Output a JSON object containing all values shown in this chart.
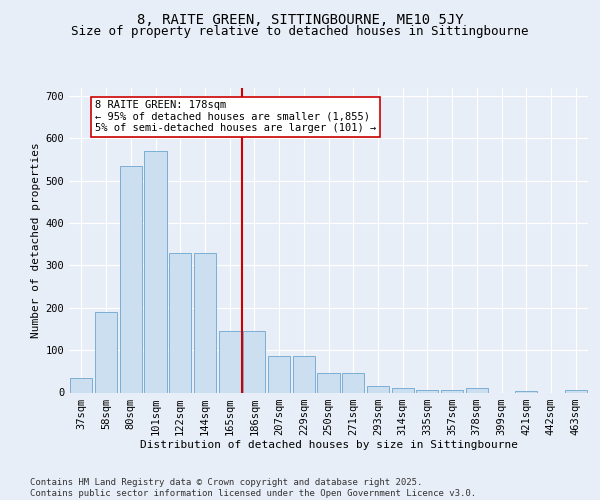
{
  "title": "8, RAITE GREEN, SITTINGBOURNE, ME10 5JY",
  "subtitle": "Size of property relative to detached houses in Sittingbourne",
  "xlabel": "Distribution of detached houses by size in Sittingbourne",
  "ylabel": "Number of detached properties",
  "categories": [
    "37sqm",
    "58sqm",
    "80sqm",
    "101sqm",
    "122sqm",
    "144sqm",
    "165sqm",
    "186sqm",
    "207sqm",
    "229sqm",
    "250sqm",
    "271sqm",
    "293sqm",
    "314sqm",
    "335sqm",
    "357sqm",
    "378sqm",
    "399sqm",
    "421sqm",
    "442sqm",
    "463sqm"
  ],
  "values": [
    35,
    190,
    535,
    570,
    330,
    330,
    145,
    145,
    85,
    85,
    45,
    45,
    15,
    10,
    5,
    5,
    10,
    0,
    4,
    0,
    5
  ],
  "bar_color": "#ccdff0",
  "bar_edge_color": "#7bafd4",
  "vline_x_index": 7,
  "vline_color": "#cc0000",
  "annotation_text": "8 RAITE GREEN: 178sqm\n← 95% of detached houses are smaller (1,855)\n5% of semi-detached houses are larger (101) →",
  "annotation_box_facecolor": "#ffffff",
  "annotation_box_edgecolor": "#cc0000",
  "ylim": [
    0,
    720
  ],
  "yticks": [
    0,
    100,
    200,
    300,
    400,
    500,
    600,
    700
  ],
  "bg_color": "#e8eef7",
  "grid_color": "#ffffff",
  "footer_line1": "Contains HM Land Registry data © Crown copyright and database right 2025.",
  "footer_line2": "Contains public sector information licensed under the Open Government Licence v3.0.",
  "title_fontsize": 10,
  "subtitle_fontsize": 9,
  "axis_label_fontsize": 8,
  "tick_fontsize": 7.5,
  "annotation_fontsize": 7.5,
  "footer_fontsize": 6.5
}
